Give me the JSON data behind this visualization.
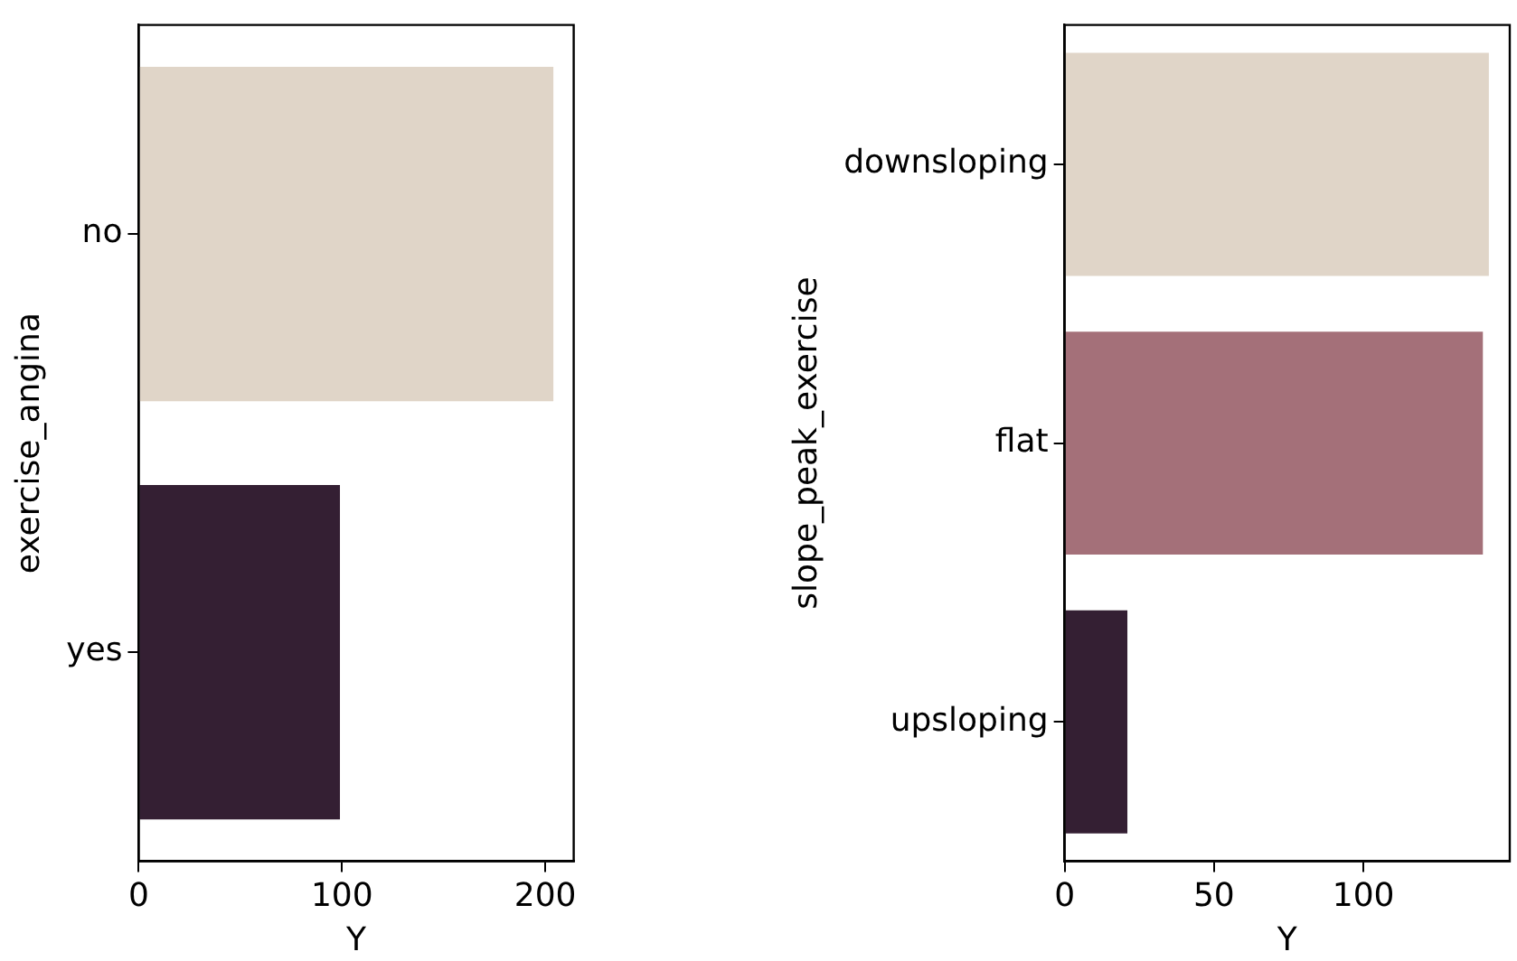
{
  "chart_data": [
    {
      "type": "bar",
      "orientation": "horizontal",
      "xlabel": "Y",
      "ylabel": "exercise_angina",
      "categories": [
        "no",
        "yes"
      ],
      "values": [
        204,
        99
      ],
      "colors": [
        "#e0d5c8",
        "#341f33"
      ],
      "xlim": [
        0,
        214
      ],
      "xticks": [
        0,
        100,
        200
      ],
      "grid": false,
      "legend": false
    },
    {
      "type": "bar",
      "orientation": "horizontal",
      "xlabel": "Y",
      "ylabel": "slope_peak_exercise",
      "categories": [
        "downsloping",
        "flat",
        "upsloping"
      ],
      "values": [
        142,
        140,
        21
      ],
      "colors": [
        "#e0d5c8",
        "#a47079",
        "#341f33"
      ],
      "xlim": [
        0,
        149
      ],
      "xticks": [
        0,
        50,
        100
      ],
      "grid": false,
      "legend": false
    }
  ]
}
